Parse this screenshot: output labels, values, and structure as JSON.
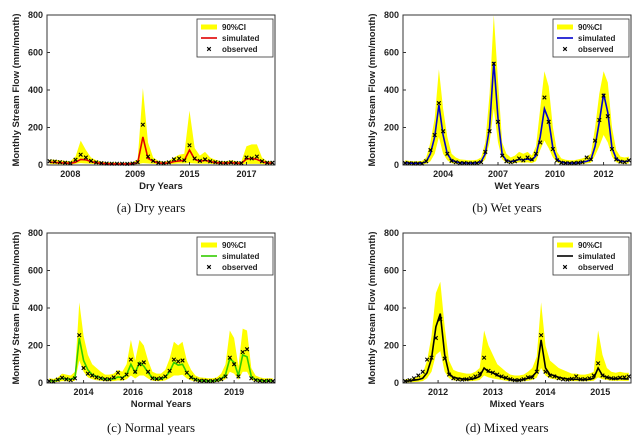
{
  "chart_data": [
    {
      "type": "line",
      "caption": "(a)  Dry  years",
      "xlabel": "Dry Years",
      "ylabel": "Monthly Stream Flow (mm/month)",
      "ylim": [
        0,
        800
      ],
      "yticks": [
        0,
        200,
        400,
        600,
        800
      ],
      "xticks": [
        "2008",
        "2009",
        "2015",
        "2017"
      ],
      "xtick_months": [
        4.5,
        17,
        27.5,
        38.5
      ],
      "n_months": 44,
      "sim_color": "#e00000",
      "legend_position": "top-right",
      "legend": [
        "90%CI",
        "simulated",
        "observed"
      ],
      "ci_upper": [
        30,
        28,
        25,
        22,
        20,
        45,
        130,
        80,
        40,
        25,
        18,
        15,
        14,
        13,
        12,
        12,
        15,
        30,
        410,
        120,
        40,
        22,
        18,
        22,
        40,
        55,
        60,
        290,
        90,
        50,
        70,
        40,
        28,
        20,
        20,
        25,
        20,
        18,
        100,
        110,
        110,
        40,
        20,
        20
      ],
      "ci_lower": [
        5,
        5,
        4,
        4,
        3,
        6,
        10,
        8,
        6,
        5,
        4,
        3,
        3,
        3,
        3,
        3,
        4,
        5,
        10,
        8,
        6,
        5,
        4,
        5,
        6,
        8,
        8,
        10,
        8,
        6,
        7,
        6,
        5,
        4,
        4,
        5,
        4,
        4,
        6,
        6,
        6,
        5,
        4,
        4
      ],
      "simulated": [
        15,
        14,
        12,
        10,
        9,
        15,
        30,
        28,
        18,
        12,
        9,
        7,
        6,
        6,
        6,
        6,
        7,
        12,
        150,
        35,
        20,
        11,
        9,
        11,
        18,
        22,
        24,
        80,
        30,
        20,
        25,
        18,
        13,
        10,
        10,
        12,
        10,
        9,
        32,
        35,
        30,
        18,
        10,
        10
      ],
      "observed": [
        20,
        18,
        15,
        12,
        10,
        28,
        55,
        40,
        22,
        14,
        10,
        8,
        7,
        7,
        7,
        6,
        8,
        15,
        215,
        45,
        22,
        12,
        10,
        14,
        30,
        35,
        25,
        105,
        35,
        22,
        30,
        20,
        15,
        12,
        11,
        14,
        11,
        10,
        40,
        35,
        45,
        20,
        12,
        12
      ]
    },
    {
      "type": "line",
      "caption": "(b)  Wet  years",
      "xlabel": "Wet Years",
      "ylabel": "Monthly Stream Flow (mm/month)",
      "ylim": [
        0,
        800
      ],
      "yticks": [
        0,
        200,
        400,
        600,
        800
      ],
      "xticks": [
        "2004",
        "2007",
        "2010",
        "2012"
      ],
      "xtick_months": [
        9.5,
        22.5,
        36,
        47.5
      ],
      "n_months": 54,
      "sim_color": "#0000cc",
      "legend_position": "top-right",
      "legend": [
        "90%CI",
        "simulated",
        "observed"
      ],
      "ci_upper": [
        25,
        22,
        20,
        20,
        22,
        40,
        120,
        250,
        510,
        300,
        150,
        60,
        40,
        30,
        28,
        25,
        25,
        28,
        40,
        120,
        380,
        800,
        450,
        120,
        60,
        40,
        50,
        70,
        60,
        70,
        50,
        100,
        300,
        500,
        420,
        200,
        70,
        35,
        28,
        25,
        25,
        30,
        35,
        45,
        60,
        200,
        380,
        500,
        440,
        200,
        80,
        45,
        40,
        45
      ],
      "ci_lower": [
        4,
        4,
        3,
        3,
        4,
        6,
        20,
        60,
        150,
        60,
        25,
        10,
        7,
        5,
        5,
        4,
        4,
        5,
        8,
        30,
        120,
        300,
        120,
        30,
        12,
        8,
        10,
        14,
        12,
        14,
        10,
        20,
        80,
        130,
        90,
        40,
        14,
        7,
        5,
        4,
        4,
        5,
        6,
        8,
        12,
        50,
        100,
        160,
        120,
        45,
        15,
        8,
        7,
        8
      ],
      "simulated": [
        12,
        10,
        9,
        9,
        10,
        18,
        60,
        150,
        320,
        160,
        60,
        25,
        18,
        12,
        11,
        10,
        10,
        12,
        18,
        60,
        200,
        550,
        250,
        55,
        25,
        18,
        22,
        30,
        28,
        32,
        25,
        50,
        150,
        300,
        240,
        90,
        30,
        15,
        12,
        10,
        10,
        12,
        15,
        20,
        28,
        100,
        230,
        380,
        280,
        90,
        35,
        20,
        18,
        22
      ],
      "observed": [
        10,
        9,
        8,
        8,
        8,
        20,
        80,
        160,
        330,
        180,
        60,
        22,
        15,
        10,
        10,
        9,
        9,
        10,
        15,
        70,
        180,
        540,
        230,
        50,
        20,
        15,
        20,
        35,
        25,
        40,
        30,
        60,
        120,
        360,
        230,
        85,
        25,
        12,
        10,
        9,
        10,
        12,
        15,
        40,
        30,
        130,
        240,
        370,
        260,
        85,
        30,
        18,
        15,
        25
      ]
    },
    {
      "type": "line",
      "caption": "(c)  Normal  years",
      "xlabel": "Normal Years",
      "ylabel": "Monthly Stream Flow (mm/month)",
      "ylim": [
        0,
        800
      ],
      "yticks": [
        0,
        200,
        400,
        600,
        800
      ],
      "xticks": [
        "2014",
        "2016",
        "2018",
        "2019"
      ],
      "xtick_months": [
        8.5,
        20,
        31.5,
        43.5
      ],
      "n_months": 53,
      "sim_color": "#33cc00",
      "legend_position": "top-right",
      "legend": [
        "90%CI",
        "simulated",
        "observed"
      ],
      "ci_upper": [
        25,
        22,
        30,
        50,
        45,
        40,
        60,
        430,
        250,
        150,
        100,
        80,
        60,
        45,
        45,
        50,
        70,
        60,
        100,
        230,
        120,
        230,
        200,
        120,
        60,
        50,
        50,
        70,
        130,
        220,
        200,
        220,
        120,
        70,
        40,
        30,
        28,
        25,
        25,
        30,
        50,
        100,
        280,
        240,
        90,
        290,
        280,
        80,
        40,
        30,
        25,
        25,
        25
      ],
      "ci_lower": [
        4,
        4,
        6,
        10,
        9,
        8,
        12,
        120,
        60,
        30,
        20,
        15,
        12,
        9,
        9,
        10,
        14,
        12,
        20,
        40,
        24,
        40,
        40,
        24,
        12,
        10,
        10,
        14,
        25,
        40,
        40,
        44,
        24,
        14,
        8,
        6,
        5,
        4,
        4,
        6,
        10,
        20,
        60,
        50,
        18,
        60,
        60,
        16,
        8,
        6,
        5,
        5,
        5
      ],
      "simulated": [
        12,
        10,
        15,
        25,
        22,
        20,
        30,
        240,
        120,
        70,
        45,
        35,
        28,
        20,
        20,
        22,
        32,
        28,
        45,
        100,
        55,
        110,
        90,
        55,
        28,
        22,
        22,
        32,
        60,
        110,
        95,
        100,
        55,
        32,
        18,
        14,
        12,
        10,
        10,
        14,
        22,
        45,
        130,
        110,
        40,
        150,
        140,
        35,
        18,
        14,
        12,
        12,
        12
      ],
      "observed": [
        10,
        8,
        18,
        28,
        20,
        15,
        25,
        255,
        80,
        50,
        40,
        30,
        25,
        20,
        20,
        30,
        55,
        25,
        45,
        125,
        60,
        100,
        110,
        60,
        25,
        22,
        25,
        35,
        65,
        125,
        115,
        120,
        55,
        30,
        18,
        12,
        12,
        10,
        10,
        15,
        20,
        35,
        135,
        100,
        35,
        165,
        180,
        25,
        15,
        12,
        10,
        12,
        10
      ]
    },
    {
      "type": "line",
      "caption": "(d)  Mixed  years",
      "xlabel": "Mixed Years",
      "ylabel": "Monthly Stream Flow (mm/month)",
      "ylim": [
        0,
        800
      ],
      "yticks": [
        0,
        200,
        400,
        600,
        800
      ],
      "xticks": [
        "2012",
        "2013",
        "2014",
        "2015"
      ],
      "xtick_months": [
        8,
        20.5,
        32.5,
        45
      ],
      "n_months": 52,
      "sim_color": "#000000",
      "legend_position": "top-right",
      "legend": [
        "90%CI",
        "simulated",
        "observed"
      ],
      "ci_upper": [
        20,
        22,
        25,
        35,
        50,
        120,
        250,
        480,
        540,
        300,
        120,
        70,
        60,
        55,
        50,
        50,
        60,
        80,
        280,
        200,
        150,
        100,
        80,
        60,
        45,
        40,
        40,
        45,
        60,
        80,
        140,
        430,
        200,
        120,
        100,
        80,
        70,
        60,
        50,
        50,
        45,
        45,
        50,
        60,
        280,
        150,
        80,
        60,
        55,
        60,
        55,
        55
      ],
      "ci_lower": [
        3,
        4,
        5,
        7,
        10,
        25,
        60,
        150,
        170,
        60,
        25,
        14,
        12,
        11,
        10,
        10,
        12,
        16,
        40,
        30,
        24,
        20,
        16,
        12,
        9,
        8,
        8,
        9,
        12,
        16,
        28,
        80,
        40,
        24,
        20,
        16,
        14,
        12,
        10,
        10,
        9,
        9,
        10,
        12,
        30,
        20,
        16,
        12,
        11,
        12,
        11,
        11
      ],
      "simulated": [
        10,
        12,
        15,
        18,
        25,
        55,
        130,
        300,
        370,
        150,
        50,
        30,
        25,
        22,
        20,
        20,
        25,
        35,
        80,
        60,
        55,
        40,
        32,
        25,
        18,
        15,
        15,
        18,
        25,
        35,
        60,
        230,
        80,
        45,
        40,
        30,
        25,
        22,
        20,
        20,
        18,
        18,
        20,
        25,
        80,
        40,
        30,
        25,
        22,
        25,
        22,
        22
      ],
      "observed": [
        10,
        15,
        25,
        40,
        60,
        125,
        135,
        240,
        340,
        130,
        45,
        25,
        20,
        18,
        20,
        25,
        35,
        50,
        135,
        65,
        55,
        45,
        35,
        28,
        20,
        15,
        15,
        20,
        30,
        30,
        60,
        255,
        60,
        40,
        35,
        25,
        20,
        18,
        22,
        35,
        20,
        20,
        25,
        40,
        105,
        40,
        30,
        25,
        25,
        28,
        30,
        35
      ]
    }
  ]
}
